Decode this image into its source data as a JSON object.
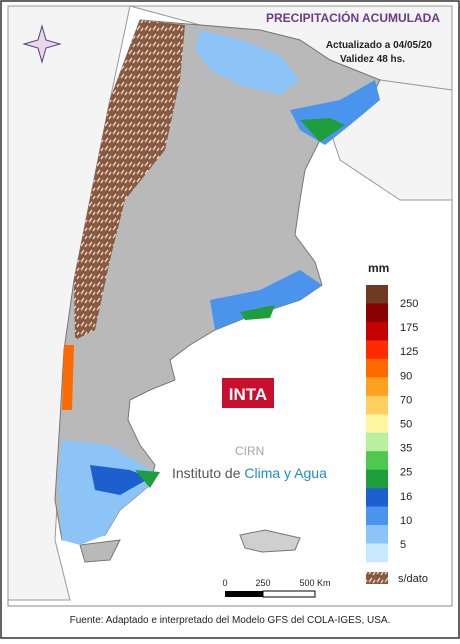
{
  "header": {
    "title": "PRECIPITACIÓN ACUMULADA",
    "updated": "Actualizado a 04/05/20",
    "validity": "Validez 48 hs."
  },
  "legend": {
    "unit": "mm",
    "labels": [
      "250",
      "175",
      "125",
      "90",
      "70",
      "50",
      "35",
      "25",
      "16",
      "10",
      "5"
    ],
    "colors": [
      "#6e3a22",
      "#8b0000",
      "#c40000",
      "#ff2a00",
      "#ff6a00",
      "#ffa020",
      "#ffd060",
      "#fff4a0",
      "#b8f0a0",
      "#50c850",
      "#1e9e3c",
      "#1e5fd0",
      "#4a94ee",
      "#8cc4f8",
      "#c8e8fc"
    ],
    "nodata": "s/dato"
  },
  "scale": {
    "labels": [
      "0",
      "250",
      "500 Km"
    ]
  },
  "logos": {
    "inta": "INTA",
    "cirn": "CIRN",
    "institute": "Instituto de ",
    "institute_emph": "Clima y Agua"
  },
  "footer": "Fuente: Adaptado e interpretado del Modelo GFS del COLA-IGES, USA."
}
